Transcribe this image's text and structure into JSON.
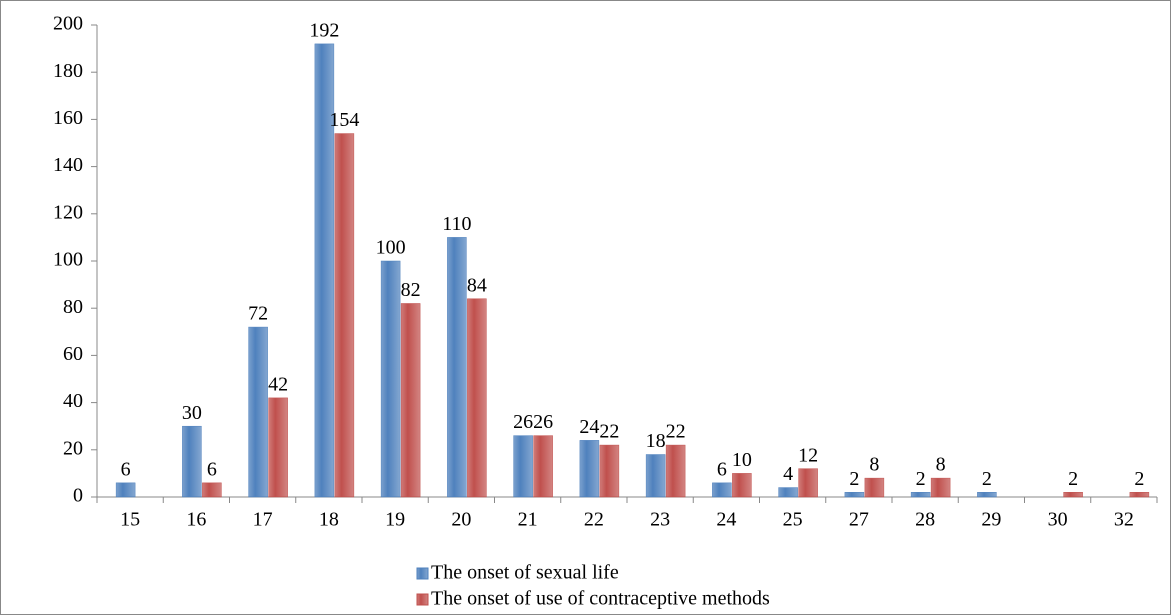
{
  "chart_data": {
    "type": "bar",
    "categories": [
      "15",
      "16",
      "17",
      "18",
      "19",
      "20",
      "21",
      "22",
      "23",
      "24",
      "25",
      "27",
      "28",
      "29",
      "30",
      "32"
    ],
    "series": [
      {
        "name": "The onset of sexual life",
        "color": "#4f81bd",
        "values": [
          6,
          30,
          72,
          192,
          100,
          110,
          26,
          24,
          18,
          6,
          4,
          2,
          2,
          2,
          null,
          null
        ]
      },
      {
        "name": "The onset of use of contraceptive methods",
        "color": "#c0504d",
        "values": [
          null,
          6,
          42,
          154,
          82,
          84,
          26,
          22,
          22,
          10,
          12,
          8,
          8,
          null,
          2,
          2
        ]
      }
    ],
    "ylim": [
      0,
      200
    ],
    "yticks": [
      0,
      20,
      40,
      60,
      80,
      100,
      120,
      140,
      160,
      180,
      200
    ],
    "grid": false,
    "legend": "bottom"
  }
}
